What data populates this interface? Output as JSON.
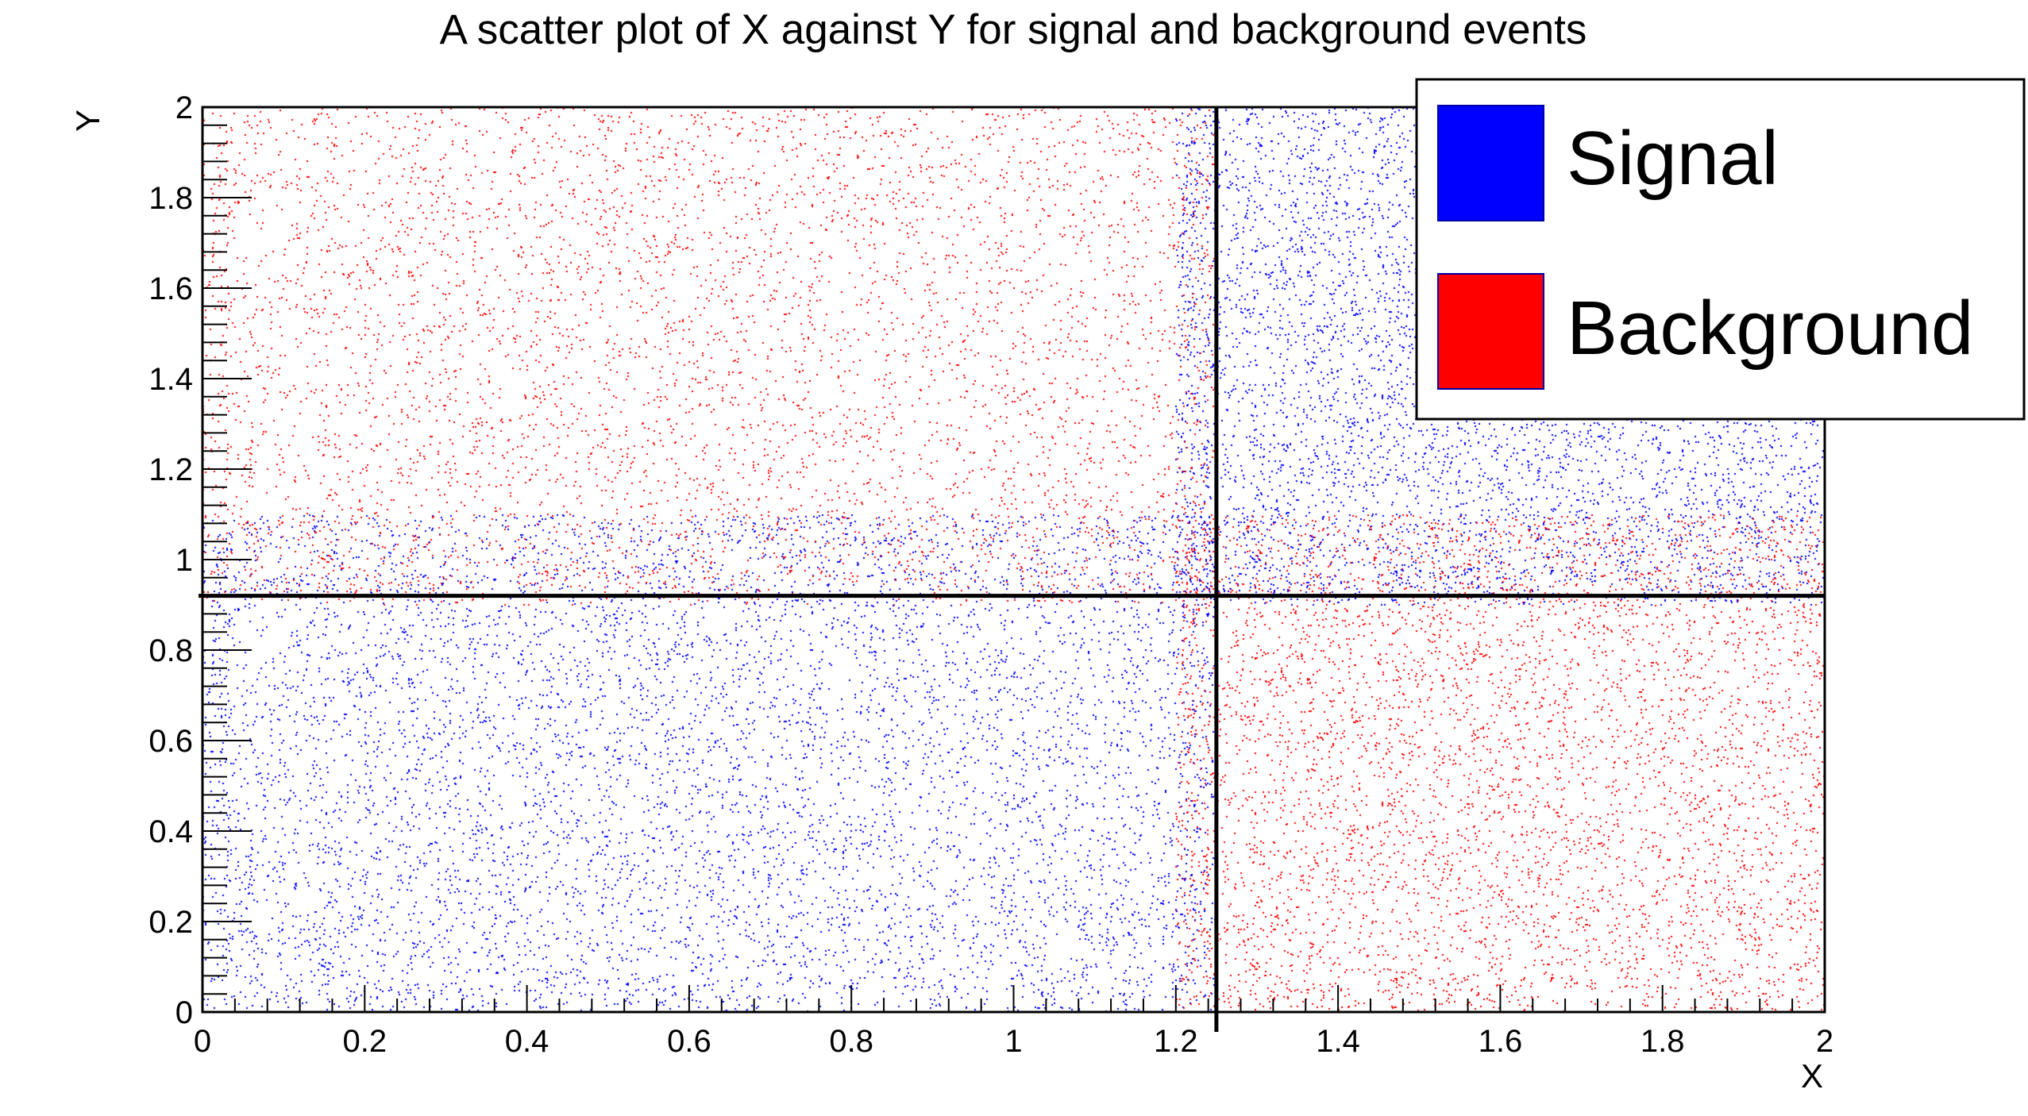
{
  "chart_data": {
    "type": "scatter",
    "title": "A scatter plot of X against Y for signal and background events",
    "xlabel": "X",
    "ylabel": "Y",
    "xlim": [
      0,
      2
    ],
    "ylim": [
      0,
      2
    ],
    "x_ticks": [
      "0",
      "0.2",
      "0.4",
      "0.6",
      "0.8",
      "1",
      "1.2",
      "1.4",
      "1.6",
      "1.8",
      "2"
    ],
    "y_ticks": [
      "0",
      "0.2",
      "0.4",
      "0.6",
      "0.8",
      "1",
      "1.2",
      "1.4",
      "1.6",
      "1.8",
      "2"
    ],
    "grid": false,
    "legend_position": "top-right",
    "series": [
      {
        "name": "Signal",
        "color": "#0000ff",
        "regions": [
          {
            "x": [
              0,
              1.25
            ],
            "y": [
              0,
              1.1
            ]
          },
          {
            "x": [
              1.2,
              2
            ],
            "y": [
              0.9,
              2
            ]
          }
        ]
      },
      {
        "name": "Background",
        "color": "#ff0000",
        "regions": [
          {
            "x": [
              0,
              1.25
            ],
            "y": [
              0.9,
              2
            ]
          },
          {
            "x": [
              1.2,
              2
            ],
            "y": [
              0,
              1.1
            ]
          }
        ]
      }
    ],
    "cut_lines": {
      "x": 1.25,
      "y": 0.92
    }
  }
}
